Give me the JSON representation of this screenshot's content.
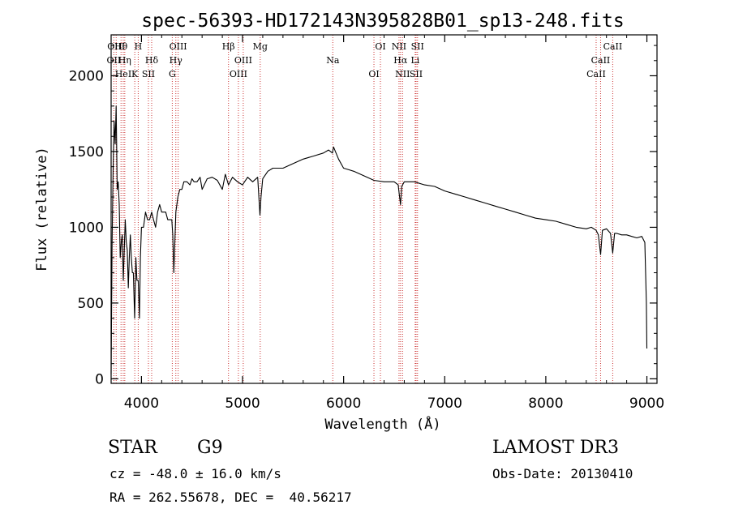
{
  "chart_data": {
    "type": "line",
    "title": "spec-56393-HD172143N395828B01_sp13-248.fits",
    "xlabel": "Wavelength (Å)",
    "ylabel": "Flux (relative)",
    "xlim": [
      3700,
      9100
    ],
    "ylim": [
      -30,
      2270
    ],
    "xticks": [
      4000,
      5000,
      6000,
      7000,
      8000,
      9000
    ],
    "xtick_labels": [
      "4000",
      "5000",
      "6000",
      "7000",
      "8000",
      "9000"
    ],
    "yticks": [
      0,
      500,
      1000,
      1500,
      2000
    ],
    "ytick_labels": [
      "0",
      "500",
      "1000",
      "1500",
      "2000"
    ],
    "grid": false,
    "series": [
      {
        "name": "flux",
        "x": [
          3700,
          3710,
          3720,
          3730,
          3740,
          3750,
          3760,
          3770,
          3780,
          3790,
          3800,
          3810,
          3820,
          3830,
          3840,
          3850,
          3860,
          3870,
          3880,
          3890,
          3900,
          3910,
          3920,
          3933,
          3945,
          3955,
          3968,
          3980,
          3990,
          4000,
          4020,
          4040,
          4060,
          4080,
          4101,
          4120,
          4140,
          4160,
          4180,
          4200,
          4220,
          4240,
          4260,
          4280,
          4300,
          4310,
          4320,
          4340,
          4360,
          4380,
          4400,
          4420,
          4450,
          4480,
          4500,
          4520,
          4550,
          4580,
          4600,
          4650,
          4700,
          4750,
          4800,
          4830,
          4861,
          4900,
          4950,
          5000,
          5050,
          5100,
          5150,
          5172,
          5183,
          5200,
          5250,
          5300,
          5400,
          5500,
          5600,
          5700,
          5800,
          5850,
          5890,
          5900,
          5950,
          6000,
          6050,
          6100,
          6200,
          6300,
          6400,
          6500,
          6540,
          6550,
          6563,
          6575,
          6600,
          6700,
          6800,
          6900,
          7000,
          7100,
          7200,
          7300,
          7400,
          7500,
          7600,
          7700,
          7800,
          7900,
          8000,
          8100,
          8200,
          8300,
          8400,
          8450,
          8498,
          8520,
          8542,
          8560,
          8600,
          8640,
          8662,
          8680,
          8700,
          8750,
          8800,
          8850,
          8900,
          8950,
          8980,
          8995,
          9000
        ],
        "values": [
          30,
          900,
          1400,
          1700,
          1550,
          1800,
          1250,
          1300,
          1150,
          800,
          900,
          950,
          650,
          850,
          1050,
          900,
          850,
          600,
          800,
          950,
          800,
          700,
          700,
          400,
          800,
          650,
          650,
          400,
          800,
          1000,
          1000,
          1100,
          1050,
          1050,
          1100,
          1050,
          1000,
          1100,
          1150,
          1100,
          1100,
          1100,
          1050,
          1050,
          1050,
          950,
          700,
          1100,
          1200,
          1250,
          1250,
          1300,
          1300,
          1280,
          1320,
          1300,
          1300,
          1330,
          1250,
          1320,
          1330,
          1310,
          1250,
          1350,
          1280,
          1330,
          1300,
          1280,
          1330,
          1300,
          1330,
          1080,
          1200,
          1320,
          1370,
          1390,
          1390,
          1420,
          1450,
          1470,
          1490,
          1510,
          1490,
          1530,
          1450,
          1390,
          1380,
          1370,
          1340,
          1310,
          1300,
          1300,
          1280,
          1220,
          1150,
          1270,
          1300,
          1300,
          1280,
          1270,
          1240,
          1220,
          1200,
          1180,
          1160,
          1140,
          1120,
          1100,
          1080,
          1060,
          1050,
          1040,
          1020,
          1000,
          990,
          1000,
          980,
          950,
          820,
          980,
          990,
          960,
          830,
          960,
          960,
          950,
          950,
          940,
          930,
          940,
          900,
          500,
          200
        ]
      }
    ],
    "line_labels": [
      {
        "label": "Hθ",
        "x": 3798
      },
      {
        "label": "OII",
        "x": 3727
      },
      {
        "label": "HeI",
        "x": 3820
      },
      {
        "label": "OIII",
        "x": 3750
      },
      {
        "label": "Hη",
        "x": 3835
      },
      {
        "label": "K",
        "x": 3934
      },
      {
        "label": "H",
        "x": 3968
      },
      {
        "label": "Hδ",
        "x": 4101
      },
      {
        "label": "SII",
        "x": 4069
      },
      {
        "label": "OIII",
        "x": 4363
      },
      {
        "label": "Hγ",
        "x": 4340
      },
      {
        "label": "G",
        "x": 4305
      },
      {
        "label": "Hβ",
        "x": 4861
      },
      {
        "label": "OIII",
        "x": 5007
      },
      {
        "label": "OIII",
        "x": 4959
      },
      {
        "label": "Mg",
        "x": 5175
      },
      {
        "label": "Na",
        "x": 5893
      },
      {
        "label": "OI",
        "x": 6300
      },
      {
        "label": "OI",
        "x": 6364
      },
      {
        "label": "Hα",
        "x": 6563
      },
      {
        "label": "SII",
        "x": 6717
      },
      {
        "label": "NII",
        "x": 6548
      },
      {
        "label": "Li",
        "x": 6708
      },
      {
        "label": "NII",
        "x": 6583
      },
      {
        "label": "SII",
        "x": 6731
      },
      {
        "label": "CaII",
        "x": 8542
      },
      {
        "label": "CaII",
        "x": 8498
      },
      {
        "label": "CaII",
        "x": 8662
      }
    ]
  },
  "info": {
    "class": "STAR",
    "subclass": "G9",
    "survey": "LAMOST DR3",
    "cz": "cz = -48.0 ± 16.0 km/s",
    "obs_date": "Obs-Date: 20130410",
    "coords": "RA = 262.55678, DEC =  40.56217"
  },
  "colors": {
    "line": "#000000",
    "marker": "#cc3333",
    "axis": "#000000"
  }
}
